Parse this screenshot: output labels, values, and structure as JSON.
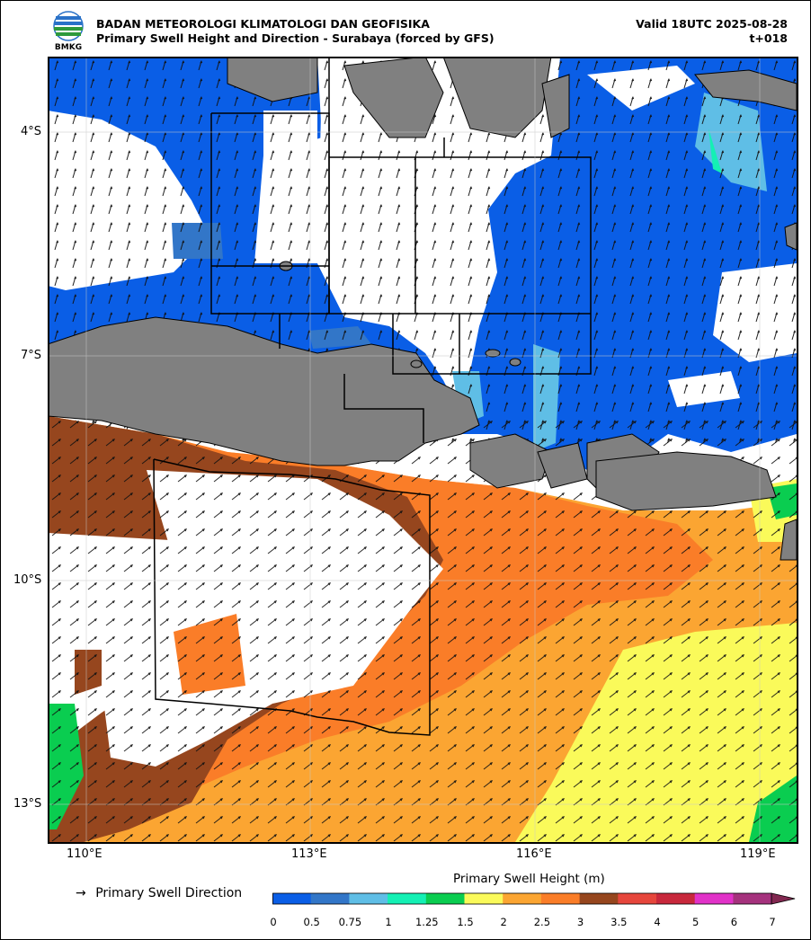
{
  "header": {
    "logo_text": "BMKG",
    "organization": "BADAN METEOROLOGI KLIMATOLOGI DAN GEOFISIKA",
    "subtitle": "Primary Swell Height and Direction - Surabaya (forced by GFS)",
    "valid": "Valid 18UTC 2025-08-28",
    "lead_time": "t+018"
  },
  "map": {
    "lat_labels": [
      "4°S",
      "7°S",
      "10°S",
      "13°S"
    ],
    "lon_labels": [
      "110°E",
      "113°E",
      "116°E",
      "119°E"
    ],
    "land_color": "#808080",
    "arrow_icon": "up-arrow-icon"
  },
  "legend": {
    "direction_label": "Primary Swell Direction",
    "colorbar_title": "Primary Swell Height (m)",
    "colorbar_ticks": [
      "0",
      "0.5",
      "0.75",
      "1",
      "1.25",
      "1.5",
      "2",
      "2.5",
      "3",
      "3.5",
      "4",
      "5",
      "6",
      "7"
    ],
    "colorbar_colors": [
      "#0a5ee6",
      "#3276c8",
      "#5fbee6",
      "#14f0b4",
      "#0acd50",
      "#fafa5a",
      "#fba532",
      "#fa7d28",
      "#96461e",
      "#e6463c",
      "#c8283c",
      "#e132c8",
      "#a5327d",
      "#822850"
    ]
  }
}
